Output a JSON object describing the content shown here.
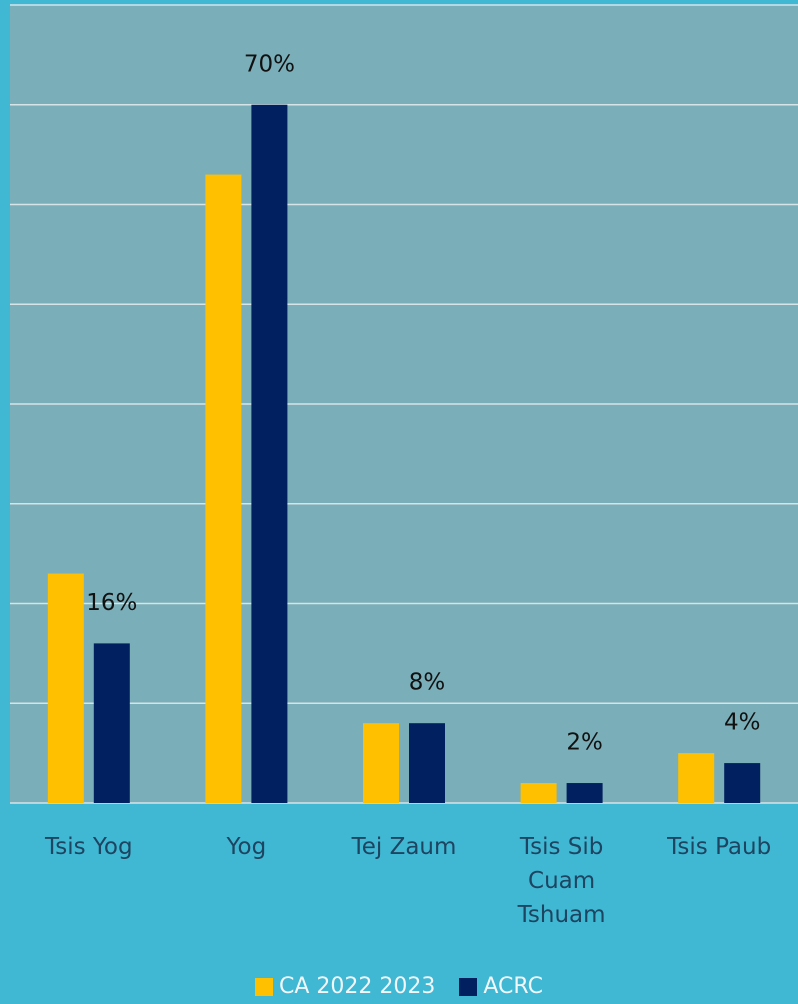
{
  "chart_data": {
    "type": "bar",
    "categories": [
      "Tsis Yog",
      "Yog",
      "Tej Zaum",
      "Tsis Sib Cuam Tshuam",
      "Tsis Paub"
    ],
    "series": [
      {
        "name": "CA 2022 2023",
        "color": "#ffc000",
        "values": [
          23,
          63,
          8,
          2,
          5
        ]
      },
      {
        "name": "ACRC",
        "color": "#002060",
        "values": [
          16,
          70,
          8,
          2,
          4
        ],
        "value_labels": [
          "16%",
          "70%",
          "8%",
          "2%",
          "4%"
        ]
      }
    ],
    "ylim": [
      0,
      80
    ],
    "yticks": [
      0,
      10,
      20,
      30,
      40,
      50,
      60,
      70,
      80
    ],
    "grid": true,
    "legend": "bottom"
  }
}
